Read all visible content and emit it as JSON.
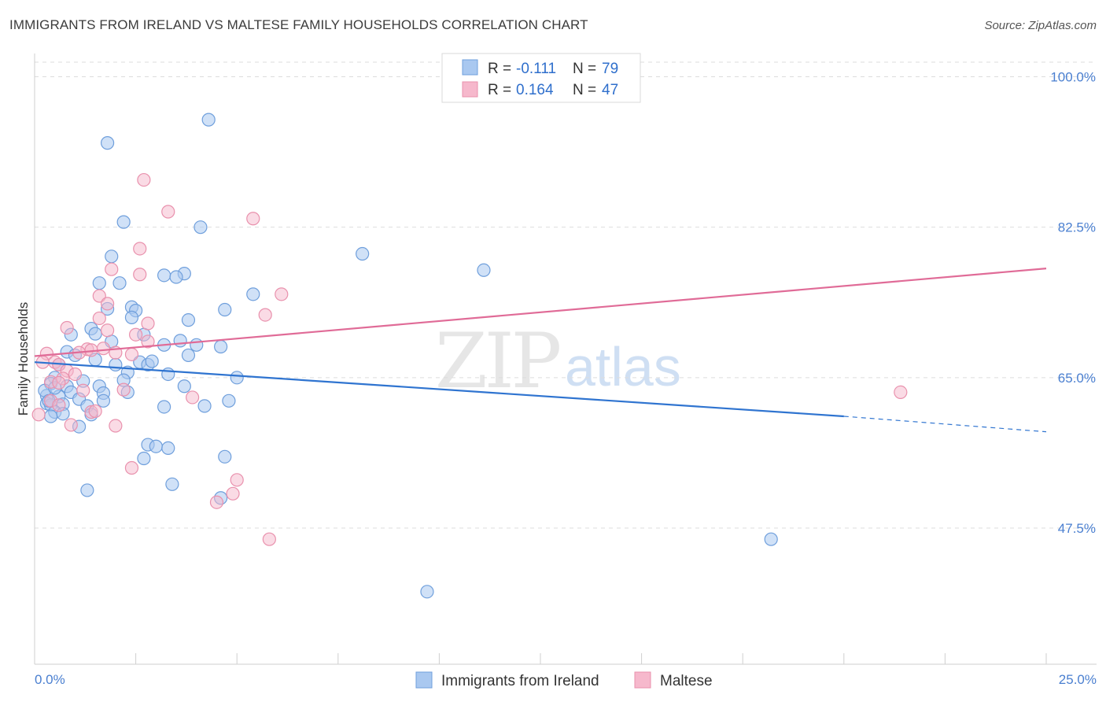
{
  "title": "IMMIGRANTS FROM IRELAND VS MALTESE FAMILY HOUSEHOLDS CORRELATION CHART",
  "source": "Source: ZipAtlas.com",
  "watermark": {
    "zip": "ZIP",
    "atlas": "atlas"
  },
  "colors": {
    "blue_fill": "#a9c8f0",
    "blue_stroke": "#6f9fdc",
    "blue_line": "#2f74d0",
    "pink_fill": "#f6b8cc",
    "pink_stroke": "#e991ad",
    "pink_line": "#e06b97",
    "tick_text": "#4a7fd0",
    "grid": "#dddddd"
  },
  "legend": {
    "r_label": "R =",
    "n_label": "N =",
    "rows": [
      {
        "r": "-0.111",
        "n": "79"
      },
      {
        "r": "0.164",
        "n": "47"
      }
    ]
  },
  "chart_data": {
    "type": "scatter",
    "title": "IMMIGRANTS FROM IRELAND VS MALTESE FAMILY HOUSEHOLDS CORRELATION CHART",
    "xlabel": "",
    "ylabel": "Family Households",
    "xlim": [
      0,
      25
    ],
    "ylim": [
      32,
      101.5
    ],
    "x_tick_labels": [
      "0.0%",
      "25.0%"
    ],
    "y_ticks": [
      47.5,
      65.0,
      82.5,
      100.0
    ],
    "y_tick_labels": [
      "47.5%",
      "65.0%",
      "82.5%",
      "100.0%"
    ],
    "series": [
      {
        "name": "Immigrants from Ireland",
        "trend": {
          "x0": 0,
          "y0": 66.8,
          "x1": 20,
          "y1": 60.5,
          "dash_to_x": 25,
          "dash_to_y": 58.7
        },
        "points": [
          [
            4.3,
            95.0
          ],
          [
            1.8,
            92.3
          ],
          [
            2.2,
            83.1
          ],
          [
            4.1,
            82.5
          ],
          [
            8.1,
            79.4
          ],
          [
            11.1,
            77.5
          ],
          [
            1.9,
            79.1
          ],
          [
            3.2,
            76.9
          ],
          [
            3.7,
            77.1
          ],
          [
            3.5,
            76.7
          ],
          [
            1.6,
            76.0
          ],
          [
            2.1,
            76.0
          ],
          [
            5.4,
            74.7
          ],
          [
            1.8,
            73.0
          ],
          [
            2.4,
            73.2
          ],
          [
            2.5,
            72.8
          ],
          [
            2.4,
            72.0
          ],
          [
            4.7,
            72.9
          ],
          [
            3.8,
            71.7
          ],
          [
            1.4,
            70.7
          ],
          [
            0.9,
            70.0
          ],
          [
            1.5,
            70.1
          ],
          [
            2.7,
            70.0
          ],
          [
            1.9,
            69.2
          ],
          [
            3.2,
            68.8
          ],
          [
            3.6,
            69.3
          ],
          [
            4.0,
            68.8
          ],
          [
            4.6,
            68.6
          ],
          [
            0.8,
            68.0
          ],
          [
            1.0,
            67.6
          ],
          [
            3.8,
            67.6
          ],
          [
            1.5,
            67.1
          ],
          [
            2.0,
            66.5
          ],
          [
            2.6,
            66.8
          ],
          [
            2.8,
            66.5
          ],
          [
            2.9,
            66.9
          ],
          [
            0.6,
            66.5
          ],
          [
            2.3,
            65.6
          ],
          [
            3.3,
            65.4
          ],
          [
            5.0,
            65.0
          ],
          [
            0.5,
            65.0
          ],
          [
            1.2,
            64.6
          ],
          [
            2.2,
            64.7
          ],
          [
            0.4,
            64.3
          ],
          [
            0.8,
            64.0
          ],
          [
            1.6,
            64.0
          ],
          [
            3.7,
            64.0
          ],
          [
            0.9,
            63.3
          ],
          [
            1.7,
            63.2
          ],
          [
            2.3,
            63.3
          ],
          [
            0.3,
            62.9
          ],
          [
            0.6,
            62.8
          ],
          [
            1.1,
            62.5
          ],
          [
            1.7,
            62.3
          ],
          [
            0.3,
            62.0
          ],
          [
            0.4,
            61.8
          ],
          [
            0.7,
            61.9
          ],
          [
            1.3,
            61.7
          ],
          [
            3.2,
            61.6
          ],
          [
            4.2,
            61.7
          ],
          [
            4.8,
            62.3
          ],
          [
            0.5,
            61.0
          ],
          [
            0.7,
            60.8
          ],
          [
            1.4,
            60.7
          ],
          [
            0.4,
            60.5
          ],
          [
            1.1,
            59.3
          ],
          [
            2.8,
            57.2
          ],
          [
            3.0,
            57.0
          ],
          [
            3.3,
            56.8
          ],
          [
            2.7,
            55.6
          ],
          [
            4.7,
            55.8
          ],
          [
            1.3,
            51.9
          ],
          [
            3.4,
            52.6
          ],
          [
            4.6,
            51.0
          ],
          [
            18.2,
            46.2
          ],
          [
            9.7,
            40.1
          ],
          [
            0.25,
            63.5
          ],
          [
            0.35,
            62.3
          ],
          [
            0.5,
            63.8
          ]
        ]
      },
      {
        "name": "Maltese",
        "trend": {
          "x0": 0,
          "y0": 67.5,
          "x1": 25,
          "y1": 77.7
        },
        "points": [
          [
            2.7,
            88.0
          ],
          [
            3.3,
            84.3
          ],
          [
            5.4,
            83.5
          ],
          [
            2.6,
            80.0
          ],
          [
            1.9,
            77.6
          ],
          [
            2.6,
            77.0
          ],
          [
            6.1,
            74.7
          ],
          [
            1.6,
            74.5
          ],
          [
            1.8,
            73.6
          ],
          [
            5.7,
            72.3
          ],
          [
            1.6,
            71.9
          ],
          [
            2.8,
            71.3
          ],
          [
            0.8,
            70.8
          ],
          [
            1.8,
            70.5
          ],
          [
            2.5,
            70.0
          ],
          [
            2.8,
            69.2
          ],
          [
            1.3,
            68.3
          ],
          [
            1.4,
            68.2
          ],
          [
            1.7,
            68.4
          ],
          [
            0.3,
            67.8
          ],
          [
            1.1,
            67.9
          ],
          [
            2.4,
            67.7
          ],
          [
            0.5,
            66.8
          ],
          [
            2.0,
            67.9
          ],
          [
            0.6,
            66.5
          ],
          [
            0.8,
            65.8
          ],
          [
            1.0,
            65.4
          ],
          [
            0.7,
            64.9
          ],
          [
            0.4,
            64.5
          ],
          [
            0.6,
            64.4
          ],
          [
            1.2,
            63.5
          ],
          [
            2.2,
            63.6
          ],
          [
            0.4,
            62.3
          ],
          [
            0.6,
            61.8
          ],
          [
            3.9,
            62.7
          ],
          [
            1.4,
            61.0
          ],
          [
            1.5,
            61.1
          ],
          [
            0.1,
            60.7
          ],
          [
            0.9,
            59.5
          ],
          [
            2.0,
            59.4
          ],
          [
            2.4,
            54.5
          ],
          [
            5.0,
            53.1
          ],
          [
            4.9,
            51.5
          ],
          [
            4.5,
            50.5
          ],
          [
            5.8,
            46.2
          ],
          [
            21.4,
            63.3
          ],
          [
            0.2,
            66.8
          ]
        ]
      }
    ]
  },
  "bottom_legend": [
    {
      "label": "Immigrants from Ireland"
    },
    {
      "label": "Maltese"
    }
  ]
}
